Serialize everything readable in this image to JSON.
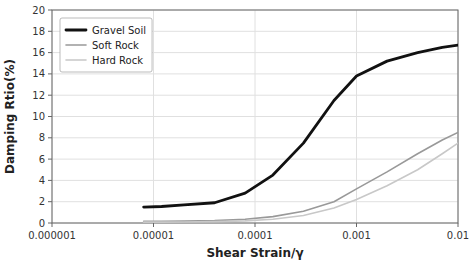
{
  "chart_data": {
    "type": "line",
    "xlabel": "Shear Strain/γ",
    "ylabel": "Damping Rtio(%)",
    "x": [
      8e-06,
      1.2e-05,
      2e-05,
      4e-05,
      8e-05,
      0.00015,
      0.0003,
      0.0006,
      0.001,
      0.002,
      0.004,
      0.007,
      0.01
    ],
    "series": [
      {
        "name": "Gravel Soil",
        "color": "#111111",
        "values": [
          1.5,
          1.55,
          1.7,
          1.9,
          2.8,
          4.5,
          7.5,
          11.5,
          13.8,
          15.2,
          16.0,
          16.5,
          16.7
        ]
      },
      {
        "name": "Soft Rock",
        "color": "#999999",
        "values": [
          0.15,
          0.15,
          0.18,
          0.22,
          0.35,
          0.6,
          1.1,
          2.0,
          3.2,
          4.8,
          6.5,
          7.8,
          8.5
        ]
      },
      {
        "name": "Hard Rock",
        "color": "#c8c8c8",
        "values": [
          0.08,
          0.08,
          0.1,
          0.13,
          0.2,
          0.35,
          0.7,
          1.4,
          2.2,
          3.5,
          5.0,
          6.5,
          7.5
        ]
      }
    ],
    "xlim": [
      1e-06,
      0.01
    ],
    "xticks": [
      1e-06,
      1e-05,
      0.0001,
      0.001,
      0.01
    ],
    "ylim": [
      0,
      20
    ],
    "yticks": [
      0,
      2,
      4,
      6,
      8,
      10,
      12,
      14,
      16,
      18,
      20
    ],
    "log": "x",
    "grid": true,
    "legend": "upper left"
  }
}
